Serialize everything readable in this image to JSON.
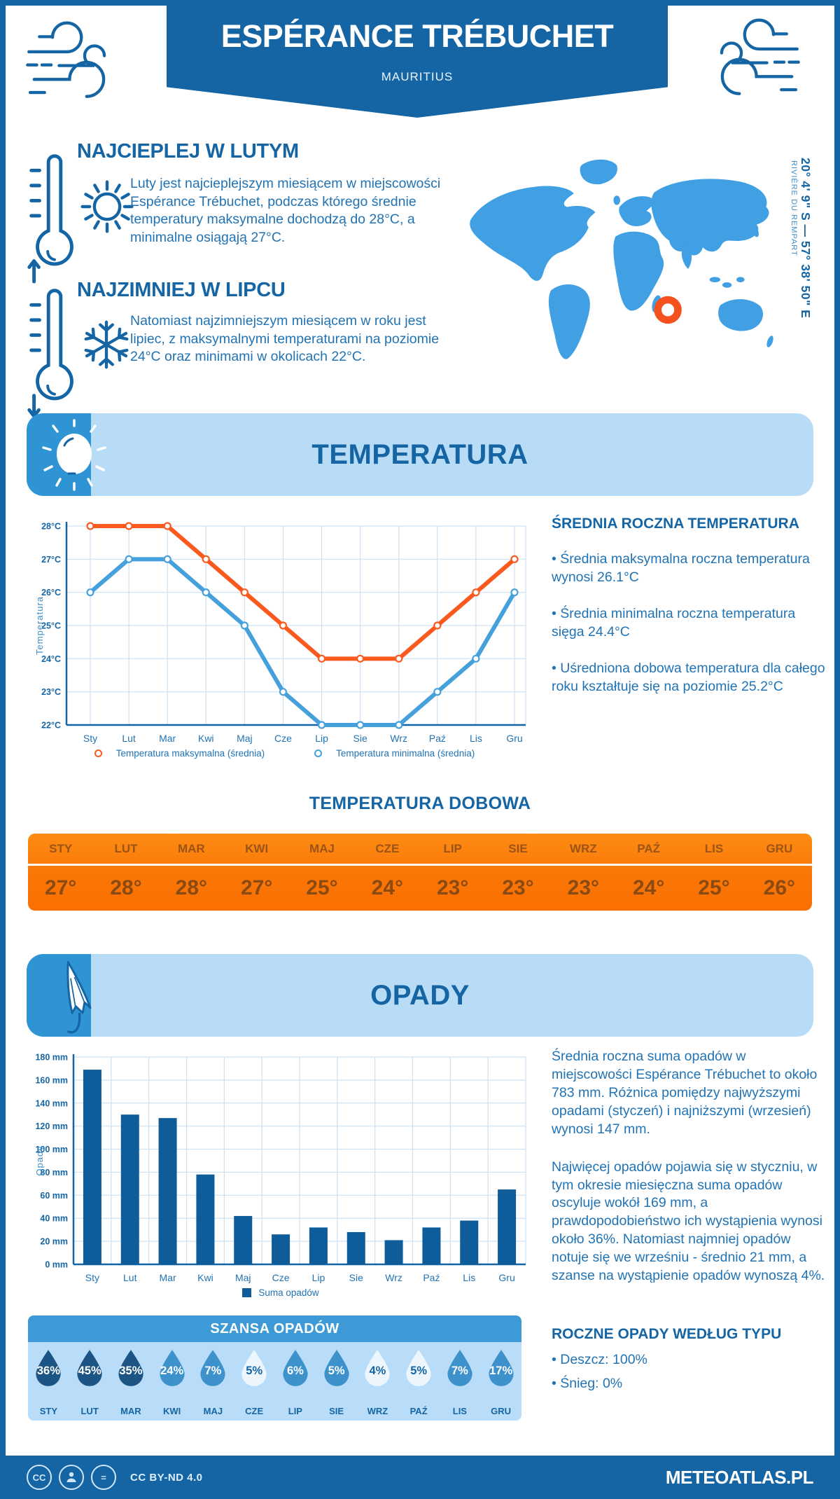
{
  "page": {
    "title": "ESPÉRANCE TRÉBUCHET",
    "subtitle": "MAURITIUS",
    "coordinates": "20° 4' 9\" S — 57° 38' 50\" E",
    "region": "RIVIÈRE DU REMPART"
  },
  "highlights": [
    {
      "heading": "NAJCIEPLEJ W LUTYM",
      "text": "Luty jest najcieplejszym miesiącem w miejscowości Espérance Trébuchet, podczas którego średnie temperatury maksymalne dochodzą do 28°C, a minimalne osiągają 27°C."
    },
    {
      "heading": "NAJZIMNIEJ W LIPCU",
      "text": "Natomiast najzimniejszym miesiącem w roku jest lipiec, z maksymalnymi temperaturami na poziomie 24°C oraz minimami w okolicach 22°C."
    }
  ],
  "temperature": {
    "banner_title": "TEMPERATURA",
    "annual_heading": "ŚREDNIA ROCZNA TEMPERATURA",
    "annual_bullets": [
      "• Średnia maksymalna roczna temperatura wynosi 26.1°C",
      "• Średnia minimalna roczna temperatura sięga 24.4°C",
      "• Uśredniona dobowa temperatura dla całego roku kształtuje się na poziomie 25.2°C"
    ],
    "daily_title": "TEMPERATURA DOBOWA",
    "table": {
      "months": [
        "STY",
        "LUT",
        "MAR",
        "KWI",
        "MAJ",
        "CZE",
        "LIP",
        "SIE",
        "WRZ",
        "PAŹ",
        "LIS",
        "GRU"
      ],
      "values": [
        "27°",
        "28°",
        "28°",
        "27°",
        "25°",
        "24°",
        "23°",
        "23°",
        "23°",
        "24°",
        "25°",
        "26°"
      ]
    }
  },
  "precipitation": {
    "banner_title": "OPADY",
    "paragraphs": [
      "Średnia roczna suma opadów w miejscowości Espérance Trébuchet to około 783 mm. Różnica pomiędzy najwyższymi opadami (styczeń) i najniższymi (wrzesień) wynosi 147 mm.",
      "Najwięcej opadów pojawia się w styczniu, w tym okresie miesięczna suma opadów oscyluje wokół 169 mm, a prawdopodobieństwo ich wystąpienia wynosi około 36%. Natomiast najmniej opadów notuje się we wrześniu - średnio 21 mm, a szanse na wystąpienie opadów wynoszą 4%."
    ],
    "type_heading": "ROCZNE OPADY WEDŁUG TYPU",
    "type_bullets": [
      "• Deszcz: 100%",
      "• Śnieg: 0%"
    ],
    "chance": {
      "heading": "SZANSA OPADÓW",
      "months": [
        "STY",
        "LUT",
        "MAR",
        "KWI",
        "MAJ",
        "CZE",
        "LIP",
        "SIE",
        "WRZ",
        "PAŹ",
        "LIS",
        "GRU"
      ],
      "percents": [
        "36%",
        "45%",
        "35%",
        "24%",
        "7%",
        "5%",
        "6%",
        "5%",
        "4%",
        "5%",
        "7%",
        "17%"
      ],
      "shades": [
        "dark",
        "dark",
        "dark",
        "mid",
        "mid",
        "light",
        "mid",
        "mid",
        "light",
        "light",
        "mid",
        "mid"
      ],
      "shade_colors": {
        "dark": "#1c5584",
        "mid": "#3d92cb",
        "light": "#eef6fd"
      }
    }
  },
  "chart_data": [
    {
      "type": "line",
      "categories": [
        "Sty",
        "Lut",
        "Mar",
        "Kwi",
        "Maj",
        "Cze",
        "Lip",
        "Sie",
        "Wrz",
        "Paź",
        "Lis",
        "Gru"
      ],
      "series": [
        {
          "name": "Temperatura maksymalna (średnia)",
          "color": "#fb5a1f",
          "values": [
            28,
            28,
            28,
            27,
            26,
            25,
            24,
            24,
            24,
            25,
            26,
            27
          ]
        },
        {
          "name": "Temperatura minimalna (średnia)",
          "color": "#45a0dc",
          "values": [
            26,
            27,
            27,
            26,
            25,
            23,
            22,
            22,
            22,
            23,
            24,
            26
          ]
        }
      ],
      "ylabel": "Temperatura",
      "ylim": [
        22,
        28
      ],
      "ytick_suffix": "°C",
      "grid": true,
      "legend_position": "bottom"
    },
    {
      "type": "bar",
      "categories": [
        "Sty",
        "Lut",
        "Mar",
        "Kwi",
        "Maj",
        "Cze",
        "Lip",
        "Sie",
        "Wrz",
        "Paź",
        "Lis",
        "Gru"
      ],
      "values": [
        169,
        130,
        127,
        78,
        42,
        26,
        32,
        28,
        21,
        32,
        38,
        65
      ],
      "bar_color": "#0e5c9a",
      "legend": "Suma opadów",
      "ylabel": "Opady",
      "ylim": [
        0,
        180
      ],
      "ytick_step": 20,
      "ytick_suffix": " mm",
      "grid": true
    }
  ],
  "colors": {
    "primary_blue": "#1565a4",
    "body_text_blue": "#2173b4",
    "light_banner": "#b9dcf6",
    "banner_cap": "#2e94d4",
    "map_blue": "#41a0e4",
    "marker_orange": "#f4511e",
    "table_orange": "#fa7607",
    "grid_line": "#cde0f1"
  },
  "footer": {
    "license": "CC BY-ND 4.0",
    "brand": "METEOATLAS.PL"
  }
}
